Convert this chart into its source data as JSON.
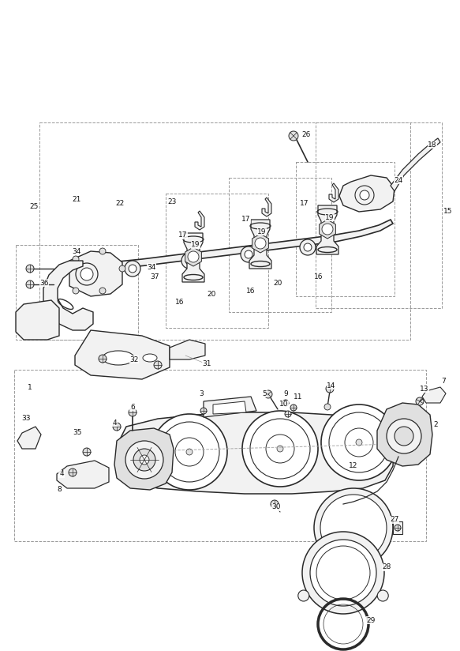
{
  "background": "#ffffff",
  "line_color": "#2a2a2a",
  "dash_color": "#999999",
  "fill_light": "#f2f2f2",
  "fill_mid": "#e0e0e0",
  "fill_dark": "#c8c8c8",
  "lw_main": 1.0,
  "lw_thin": 0.6,
  "fs_label": 6.5,
  "fig_w": 5.83,
  "fig_h": 8.24,
  "dpi": 100
}
